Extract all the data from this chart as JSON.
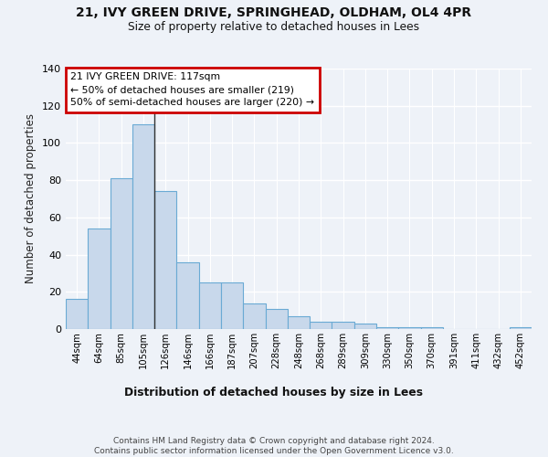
{
  "title1": "21, IVY GREEN DRIVE, SPRINGHEAD, OLDHAM, OL4 4PR",
  "title2": "Size of property relative to detached houses in Lees",
  "xlabel": "Distribution of detached houses by size in Lees",
  "ylabel": "Number of detached properties",
  "bar_labels": [
    "44sqm",
    "64sqm",
    "85sqm",
    "105sqm",
    "126sqm",
    "146sqm",
    "166sqm",
    "187sqm",
    "207sqm",
    "228sqm",
    "248sqm",
    "268sqm",
    "289sqm",
    "309sqm",
    "330sqm",
    "350sqm",
    "370sqm",
    "391sqm",
    "411sqm",
    "432sqm",
    "452sqm"
  ],
  "bar_values": [
    16,
    54,
    81,
    110,
    74,
    36,
    25,
    25,
    14,
    11,
    7,
    4,
    4,
    3,
    1,
    1,
    1,
    0,
    0,
    0,
    1
  ],
  "bar_color": "#c8d8eb",
  "bar_edge_color": "#6aaad4",
  "annotation_text": "21 IVY GREEN DRIVE: 117sqm\n← 50% of detached houses are smaller (219)\n50% of semi-detached houses are larger (220) →",
  "annotation_box_color": "#cc0000",
  "background_color": "#eef2f8",
  "plot_bg_color": "#eef2f8",
  "grid_color": "#ffffff",
  "footnote": "Contains HM Land Registry data © Crown copyright and database right 2024.\nContains public sector information licensed under the Open Government Licence v3.0.",
  "ylim": [
    0,
    140
  ],
  "yticks": [
    0,
    20,
    40,
    60,
    80,
    100,
    120,
    140
  ]
}
